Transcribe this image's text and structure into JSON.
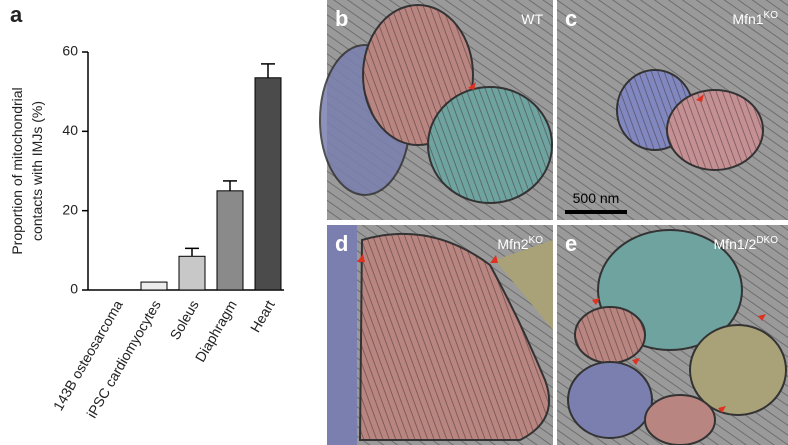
{
  "chart_data": {
    "type": "bar",
    "panel_letter": "a",
    "ylabel": [
      "Proportion of mitochondrial",
      "contacts with IMJs (%)"
    ],
    "categories": [
      "143B osteosarcoma",
      "iPSC cardiomyocytes",
      "Soleus",
      "Diaphragm",
      "Heart"
    ],
    "values": [
      0,
      2,
      8.5,
      25,
      53.5
    ],
    "errors": [
      null,
      null,
      2,
      2.5,
      3.5
    ],
    "colors": [
      "#ffffff",
      "#ececec",
      "#c8c8c8",
      "#8a8a8a",
      "#4b4b4b"
    ],
    "ylim": [
      0,
      60
    ],
    "yticks": [
      0,
      20,
      40,
      60
    ]
  },
  "panels": [
    {
      "letter": "b",
      "label": "WT"
    },
    {
      "letter": "c",
      "label": "Mfn1",
      "sup": "KO",
      "scale_bar": "500 nm"
    },
    {
      "letter": "d",
      "label": "Mfn2",
      "sup": "KO"
    },
    {
      "letter": "e",
      "label": "Mfn1/2",
      "sup": "DKO"
    }
  ]
}
